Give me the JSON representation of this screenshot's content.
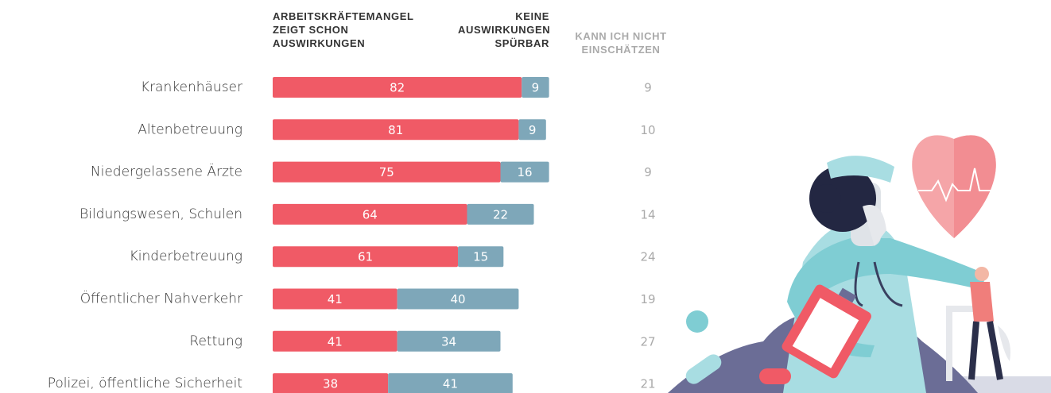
{
  "chart_data": {
    "type": "bar",
    "orientation": "horizontal",
    "stacked": true,
    "categories": [
      "Krankenhäuser",
      "Altenbetreuung",
      "Niedergelassene Ärzte",
      "Bildungswesen, Schulen",
      "Kinderbetreuung",
      "Öffentlicher Nahverkehr",
      "Rettung",
      "Polizei, öffentliche Sicherheit"
    ],
    "series": [
      {
        "name": "ARBEITSKRÄFTEMANGEL ZEIGT SCHON AUSWIRKUNGEN",
        "color": "#f05a66",
        "values": [
          82,
          81,
          75,
          64,
          61,
          41,
          41,
          38
        ]
      },
      {
        "name": "KEINE AUSWIRKUNGEN SPÜRBAR",
        "color": "#7ea7b9",
        "values": [
          9,
          9,
          16,
          22,
          15,
          40,
          34,
          41
        ]
      },
      {
        "name": "KANN ICH NICHT EINSCHÄTZEN",
        "color": "#aaaaaa",
        "values": [
          9,
          10,
          9,
          14,
          24,
          19,
          27,
          21
        ]
      }
    ]
  }
}
